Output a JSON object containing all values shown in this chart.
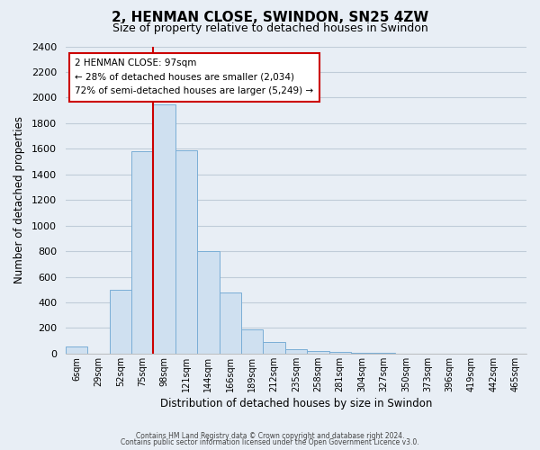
{
  "title": "2, HENMAN CLOSE, SWINDON, SN25 4ZW",
  "subtitle": "Size of property relative to detached houses in Swindon",
  "xlabel": "Distribution of detached houses by size in Swindon",
  "ylabel": "Number of detached properties",
  "bar_color": "#cfe0f0",
  "bar_edge_color": "#7aaed6",
  "categories": [
    "6sqm",
    "29sqm",
    "52sqm",
    "75sqm",
    "98sqm",
    "121sqm",
    "144sqm",
    "166sqm",
    "189sqm",
    "212sqm",
    "235sqm",
    "258sqm",
    "281sqm",
    "304sqm",
    "327sqm",
    "350sqm",
    "373sqm",
    "396sqm",
    "419sqm",
    "442sqm",
    "465sqm"
  ],
  "values": [
    55,
    0,
    500,
    1580,
    1950,
    1590,
    800,
    480,
    190,
    90,
    35,
    20,
    15,
    5,
    5,
    2,
    2,
    2,
    0,
    0,
    0
  ],
  "ylim": [
    0,
    2400
  ],
  "yticks": [
    0,
    200,
    400,
    600,
    800,
    1000,
    1200,
    1400,
    1600,
    1800,
    2000,
    2200,
    2400
  ],
  "red_line_index": 4,
  "marker_color": "#cc0000",
  "annotation_title": "2 HENMAN CLOSE: 97sqm",
  "annotation_line1": "← 28% of detached houses are smaller (2,034)",
  "annotation_line2": "72% of semi-detached houses are larger (5,249) →",
  "annotation_box_color": "#ffffff",
  "annotation_box_edge": "#cc0000",
  "footer1": "Contains HM Land Registry data © Crown copyright and database right 2024.",
  "footer2": "Contains public sector information licensed under the Open Government Licence v3.0.",
  "background_color": "#e8eef5",
  "plot_bg_color": "#e8eef5",
  "grid_color": "#c0ccd8"
}
